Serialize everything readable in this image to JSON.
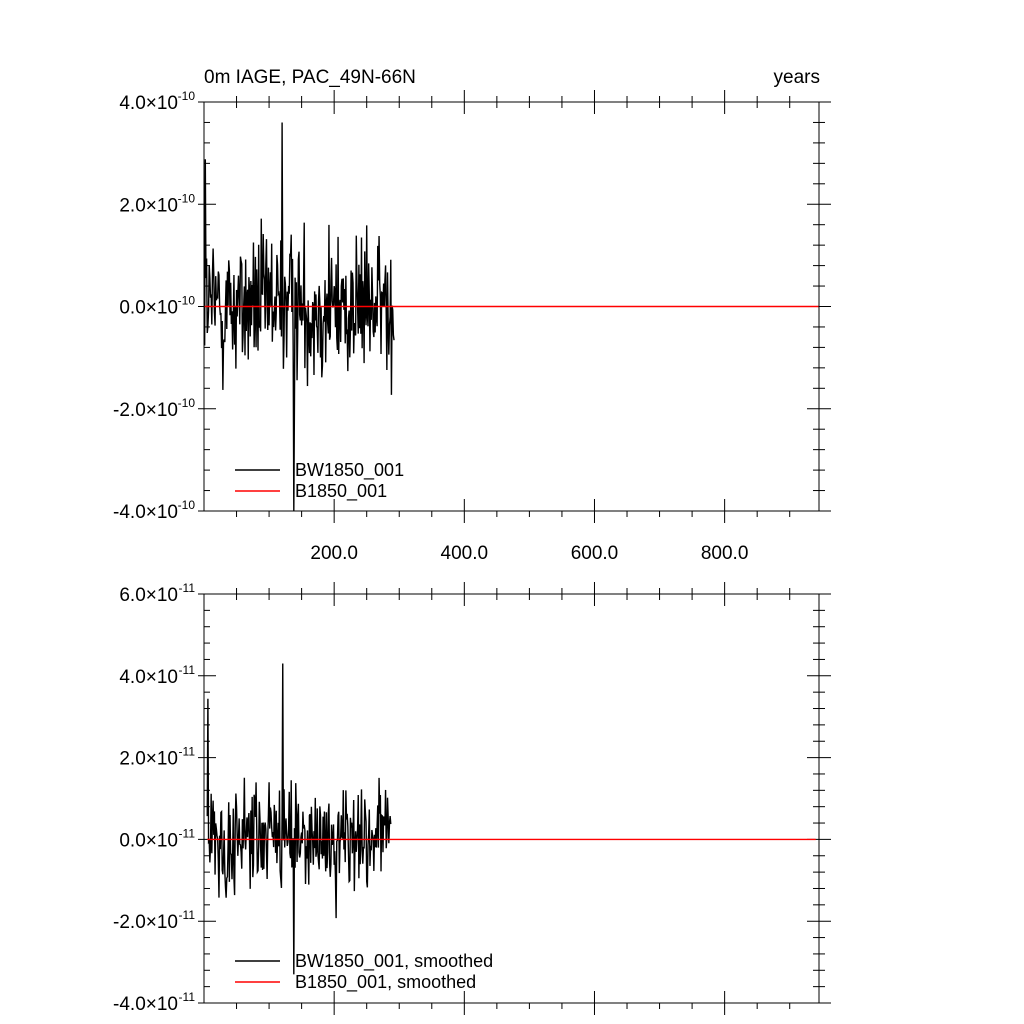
{
  "figure": {
    "title_left": "0m IAGE, PAC_49N-66N",
    "title_right": "years"
  },
  "colors": {
    "series_1": "#000000",
    "series_2": "#ff0000",
    "axes": "#000000",
    "background": "#ffffff"
  },
  "chart_data": [
    {
      "type": "line",
      "x_range": [
        0,
        945
      ],
      "ylim": [
        -4e-10,
        4e-10
      ],
      "x_ticks": [
        200,
        400,
        600,
        800
      ],
      "x_tick_labels": [
        "200.0",
        "400.0",
        "600.0",
        "800.0"
      ],
      "y_ticks": [
        -4e-10,
        -2e-10,
        0.0,
        2e-10,
        4e-10
      ],
      "y_tick_labels": [
        {
          "mantissa": "-4.0",
          "exponent": "-10"
        },
        {
          "mantissa": "-2.0",
          "exponent": "-10"
        },
        {
          "mantissa": "0.0",
          "exponent": "-10"
        },
        {
          "mantissa": "2.0",
          "exponent": "-10"
        },
        {
          "mantissa": "4.0",
          "exponent": "-10"
        }
      ],
      "times_symbol": "×",
      "grid": false,
      "legend_position": "bottom-left",
      "series": [
        {
          "name": "BW1850_001",
          "color": "#000000",
          "x_start": 1,
          "x_end": 292,
          "n_points": 292,
          "y_amplitude_typical": 1e-10,
          "y_max": 3.6e-10,
          "y_min": -4e-10
        },
        {
          "name": "B1850_001",
          "color": "#ff0000",
          "x_start": 1,
          "x_end": 945,
          "y_constant": 0.0
        }
      ]
    },
    {
      "type": "line",
      "x_range": [
        0,
        945
      ],
      "ylim": [
        -4e-11,
        6e-11
      ],
      "x_ticks": [
        200,
        400,
        600,
        800
      ],
      "x_tick_labels": [],
      "y_ticks": [
        -4e-11,
        -2e-11,
        0.0,
        2e-11,
        4e-11,
        6e-11
      ],
      "y_tick_labels": [
        {
          "mantissa": "-4.0",
          "exponent": "-11"
        },
        {
          "mantissa": "-2.0",
          "exponent": "-11"
        },
        {
          "mantissa": "0.0",
          "exponent": "-11"
        },
        {
          "mantissa": "2.0",
          "exponent": "-11"
        },
        {
          "mantissa": "4.0",
          "exponent": "-11"
        },
        {
          "mantissa": "6.0",
          "exponent": "-11"
        }
      ],
      "times_symbol": "×",
      "grid": false,
      "legend_position": "bottom-left",
      "series": [
        {
          "name": "BW1850_001, smoothed",
          "color": "#000000",
          "x_start": 5,
          "x_end": 287,
          "n_points": 283,
          "y_amplitude_typical": 1e-11,
          "y_max": 4.3e-11,
          "y_min": -3.3e-11
        },
        {
          "name": "B1850_001, smoothed",
          "color": "#ff0000",
          "x_start": 5,
          "x_end": 940,
          "y_constant": 0.0
        }
      ]
    }
  ]
}
